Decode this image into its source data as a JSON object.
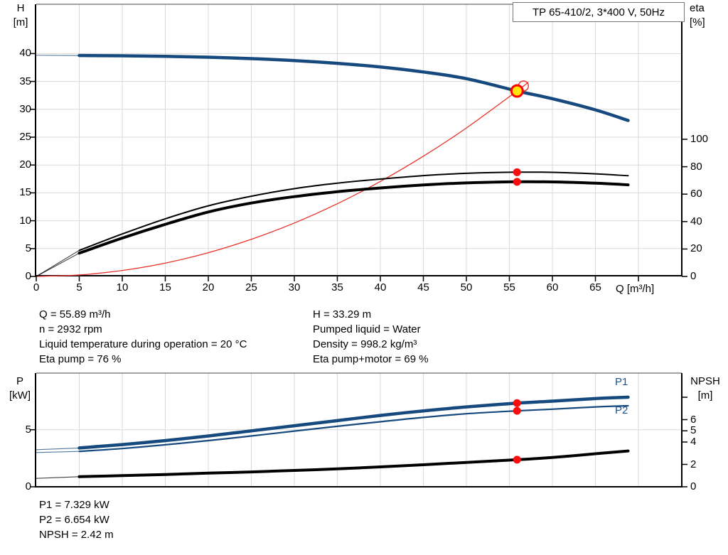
{
  "title_box": "TP 65-410/2, 3*400 V, 50Hz",
  "top_chart": {
    "y_left": [
      "H",
      "[m]"
    ],
    "y_right": [
      "eta",
      "[%]"
    ],
    "x_label": "Q [m³/h]"
  },
  "bottom_chart": {
    "y_left": [
      "P",
      "[kW]"
    ],
    "y_right": [
      "NPSH",
      "[m]"
    ],
    "p1_label": "P1",
    "p2_label": "P2"
  },
  "info_left": [
    "Q = 55.89 m³/h",
    "n = 2932 rpm",
    "Liquid temperature during operation = 20 °C",
    "Eta pump = 76 %"
  ],
  "info_right": [
    "H = 33.29 m",
    "Pumped liquid = Water",
    "Density = 998.2 kg/m³",
    "Eta pump+motor = 69 %"
  ],
  "footer": [
    "P1 = 7.329 kW",
    "P2 = 6.654 kW",
    "NPSH = 2.42 m"
  ],
  "colors": {
    "curve_blue": "#164a7e",
    "curve_black": "#000000",
    "curve_red": "#e83028",
    "dot_red": "#f90d0d",
    "duty_yellow": "#ffe60a",
    "grid": "#d9d9d9",
    "frame": "#000000",
    "label_blue": "#1b5294"
  },
  "chart_data": [
    {
      "type": "line",
      "title": "TP 65-410/2, 3*400 V, 50Hz",
      "xlabel": "Q [m³/h]",
      "x_axis": {
        "min": 0,
        "max": 75,
        "ticks": [
          0,
          5,
          10,
          15,
          20,
          25,
          30,
          35,
          40,
          45,
          50,
          55,
          60,
          65,
          70
        ],
        "labeled_ticks": [
          0,
          5,
          10,
          15,
          20,
          25,
          30,
          35,
          40,
          45,
          50,
          55,
          60,
          65
        ]
      },
      "y_left_axis": {
        "label": "H [m]",
        "min": 0,
        "max": 48.8,
        "ticks": [
          0,
          5,
          10,
          15,
          20,
          25,
          30,
          35,
          40
        ]
      },
      "y_right_axis": {
        "label": "eta [%]",
        "min": 0,
        "max": 198,
        "ticks": [
          0,
          20,
          40,
          60,
          80,
          100
        ]
      },
      "grid": true,
      "series": [
        {
          "name": "head-curve",
          "axis": "h",
          "style": "blue-thick",
          "points": [
            [
              0,
              39.7
            ],
            [
              5,
              39.65
            ],
            [
              10,
              39.6
            ],
            [
              15,
              39.5
            ],
            [
              20,
              39.35
            ],
            [
              25,
              39.1
            ],
            [
              30,
              38.75
            ],
            [
              35,
              38.25
            ],
            [
              40,
              37.6
            ],
            [
              45,
              36.7
            ],
            [
              50,
              35.5
            ],
            [
              55.89,
              33.29
            ],
            [
              60,
              31.9
            ],
            [
              65,
              29.9
            ],
            [
              68.8,
              28.0
            ]
          ]
        },
        {
          "name": "system-curve",
          "axis": "h",
          "style": "red-thin",
          "points": [
            [
              0,
              0
            ],
            [
              5,
              0.27
            ],
            [
              10,
              1.07
            ],
            [
              15,
              2.4
            ],
            [
              20,
              4.26
            ],
            [
              25,
              6.66
            ],
            [
              30,
              9.59
            ],
            [
              35,
              13.05
            ],
            [
              40,
              17.05
            ],
            [
              45,
              21.58
            ],
            [
              50,
              26.64
            ],
            [
              55.89,
              33.29
            ],
            [
              57.2,
              34.87
            ]
          ]
        },
        {
          "name": "eta-pump-curve",
          "axis": "eta",
          "style": "black-thin",
          "points": [
            [
              0,
              0
            ],
            [
              5,
              19
            ],
            [
              10,
              31
            ],
            [
              15,
              42
            ],
            [
              20,
              51.5
            ],
            [
              25,
              58.5
            ],
            [
              30,
              64
            ],
            [
              35,
              68
            ],
            [
              40,
              71
            ],
            [
              45,
              73.5
            ],
            [
              50,
              75.2
            ],
            [
              55.89,
              76
            ],
            [
              60,
              75.9
            ],
            [
              65,
              74.8
            ],
            [
              68.8,
              73.4
            ]
          ]
        },
        {
          "name": "eta-pump-motor-curve",
          "axis": "eta",
          "style": "black-thick",
          "points": [
            [
              0,
              0
            ],
            [
              5,
              17
            ],
            [
              10,
              28
            ],
            [
              15,
              38
            ],
            [
              20,
              47
            ],
            [
              25,
              53.5
            ],
            [
              30,
              58.2
            ],
            [
              35,
              61.8
            ],
            [
              40,
              64.5
            ],
            [
              45,
              66.7
            ],
            [
              50,
              68.2
            ],
            [
              55.89,
              69
            ],
            [
              60,
              68.9
            ],
            [
              65,
              68
            ],
            [
              68.8,
              66.8
            ]
          ]
        }
      ],
      "duty_point": {
        "q": 55.89,
        "h": 33.29,
        "eta_pump": 76,
        "eta_pump_motor": 69
      }
    },
    {
      "type": "line",
      "xlabel": "Q [m³/h]",
      "x_axis": {
        "min": 0,
        "max": 75,
        "ticks": [
          5,
          10,
          15,
          20,
          25,
          30,
          35,
          40,
          45,
          50,
          55,
          60,
          65,
          70
        ]
      },
      "y_left_axis": {
        "label": "P [kW]",
        "min": 0,
        "max": 9.96,
        "ticks": [
          0,
          5
        ]
      },
      "y_right_axis": {
        "label": "NPSH [m]",
        "min": 0,
        "max": 10.16,
        "ticks": [
          0,
          2,
          4,
          5,
          6,
          8
        ],
        "labeled_ticks": [
          0,
          2,
          4,
          5,
          6
        ]
      },
      "grid": true,
      "series": [
        {
          "name": "p1-curve",
          "axis": "p",
          "style": "blue-thick",
          "points": [
            [
              0,
              3.25
            ],
            [
              5,
              3.4
            ],
            [
              10,
              3.7
            ],
            [
              15,
              4.05
            ],
            [
              20,
              4.45
            ],
            [
              25,
              4.9
            ],
            [
              30,
              5.35
            ],
            [
              35,
              5.8
            ],
            [
              40,
              6.25
            ],
            [
              45,
              6.65
            ],
            [
              50,
              7.0
            ],
            [
              55.89,
              7.329
            ],
            [
              60,
              7.5
            ],
            [
              65,
              7.73
            ],
            [
              68.8,
              7.85
            ]
          ]
        },
        {
          "name": "p2-curve",
          "axis": "p",
          "style": "blue-thin",
          "points": [
            [
              0,
              3.0
            ],
            [
              5,
              3.1
            ],
            [
              10,
              3.35
            ],
            [
              15,
              3.68
            ],
            [
              20,
              4.05
            ],
            [
              25,
              4.45
            ],
            [
              30,
              4.88
            ],
            [
              35,
              5.3
            ],
            [
              40,
              5.7
            ],
            [
              45,
              6.08
            ],
            [
              50,
              6.4
            ],
            [
              55.89,
              6.654
            ],
            [
              60,
              6.8
            ],
            [
              65,
              7.0
            ],
            [
              68.8,
              7.1
            ]
          ]
        },
        {
          "name": "npsh-curve",
          "axis": "npsh",
          "style": "black-thick",
          "points": [
            [
              0,
              0.75
            ],
            [
              5,
              0.9
            ],
            [
              10,
              1.0
            ],
            [
              15,
              1.1
            ],
            [
              20,
              1.22
            ],
            [
              25,
              1.33
            ],
            [
              30,
              1.46
            ],
            [
              35,
              1.6
            ],
            [
              40,
              1.78
            ],
            [
              45,
              1.97
            ],
            [
              50,
              2.18
            ],
            [
              55.89,
              2.42
            ],
            [
              60,
              2.62
            ],
            [
              65,
              2.95
            ],
            [
              68.8,
              3.2
            ]
          ]
        }
      ],
      "duty_point": {
        "q": 55.89,
        "p1": 7.329,
        "p2": 6.654,
        "npsh": 2.42
      }
    }
  ]
}
